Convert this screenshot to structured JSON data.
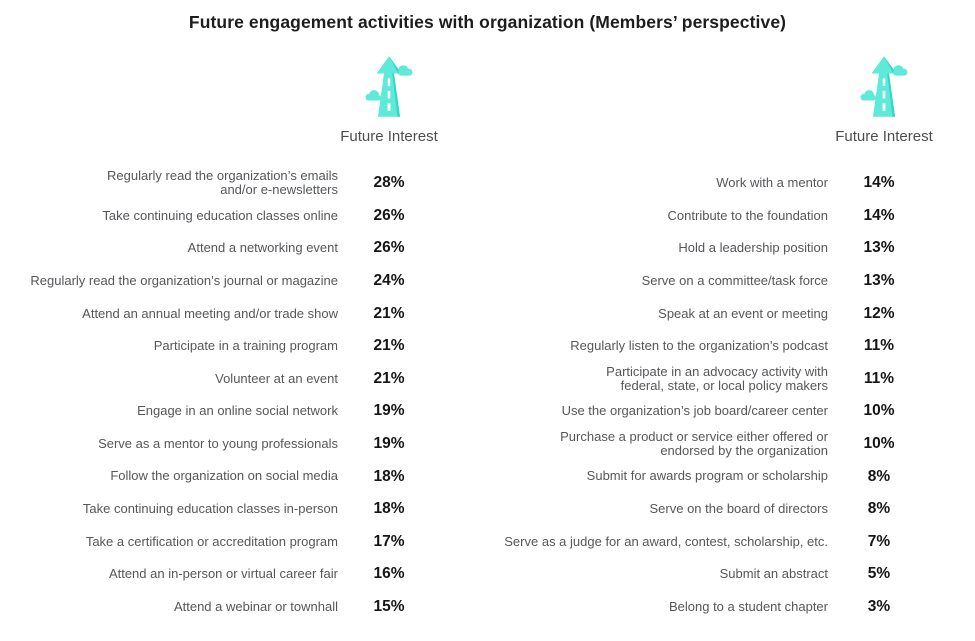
{
  "title": "Future engagement activities with organization (Members’ perspective)",
  "icons": {
    "header_icon": "ascending-road-arrow-icon"
  },
  "colors": {
    "accent_teal": "#5FE9D8",
    "accent_teal_dark": "#2FD9C6",
    "label_gray": "#55575A",
    "value_black": "#161616",
    "title_color": "#1D1D1F"
  },
  "chart_data": [
    {
      "type": "table",
      "title": "Future Interest",
      "value_suffix": "%",
      "categories": [
        "Regularly read the organization’s emails\nand/or e-newsletters",
        "Take continuing education classes online",
        "Attend a networking event",
        "Regularly read the organization’s journal or magazine",
        "Attend an annual meeting and/or trade show",
        "Participate in a training program",
        "Volunteer at an event",
        "Engage in an online social network",
        "Serve as a mentor to young professionals",
        "Follow the organization on social media",
        "Take continuing education classes in-person",
        "Take a certification or accreditation program",
        "Attend an in-person or virtual career fair",
        "Attend a webinar or townhall"
      ],
      "values": [
        28,
        26,
        26,
        24,
        21,
        21,
        21,
        19,
        19,
        18,
        18,
        17,
        16,
        15
      ]
    },
    {
      "type": "table",
      "title": "Future Interest",
      "value_suffix": "%",
      "categories": [
        "Work with a mentor",
        "Contribute to the foundation",
        "Hold a leadership position",
        "Serve on a committee/task force",
        "Speak at an event or meeting",
        "Regularly listen to the organization’s podcast",
        "Participate in an advocacy activity with\nfederal, state, or local policy makers",
        "Use the organization’s job board/career center",
        "Purchase a product or service either offered or\nendorsed by the organization",
        "Submit for awards program or scholarship",
        "Serve on the board of directors",
        "Serve as a judge for an award, contest, scholarship, etc.",
        "Submit an abstract",
        "Belong to a student chapter"
      ],
      "values": [
        14,
        14,
        13,
        13,
        12,
        11,
        11,
        10,
        10,
        8,
        8,
        7,
        5,
        3
      ]
    }
  ]
}
